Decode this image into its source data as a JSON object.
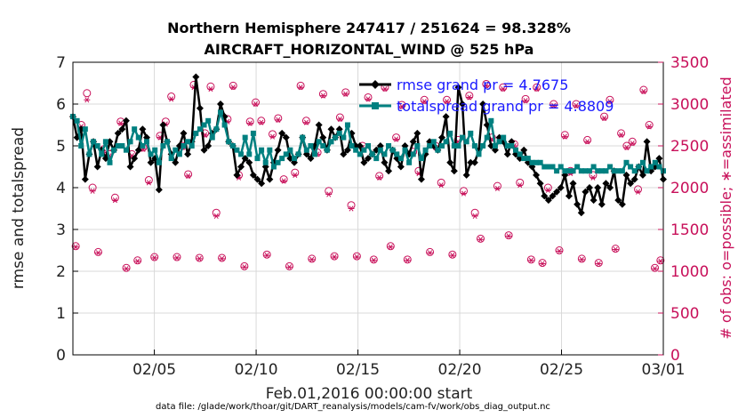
{
  "chart_data": {
    "type": "line",
    "title": [
      "Northern Hemisphere 247417 / 251624 = 98.328%",
      "AIRCRAFT_HORIZONTAL_WIND @ 525 hPa"
    ],
    "xlabel": "Feb.01,2016 00:00:00 start",
    "ylabel_left": "rmse and totalspread",
    "ylabel_right": "# of obs: o=possible; ∗=assimilated",
    "footer": "data file: /glade/work/thoar/git/DART_reanalysis/models/cam-fv/work/obs_diag_output.nc",
    "xlim": [
      1,
      30
    ],
    "ylim_left": [
      0,
      7
    ],
    "ylim_right": [
      0,
      3500
    ],
    "x_ticks": [
      {
        "value": 5,
        "label": "02/05"
      },
      {
        "value": 10,
        "label": "02/10"
      },
      {
        "value": 15,
        "label": "02/15"
      },
      {
        "value": 20,
        "label": "02/20"
      },
      {
        "value": 25,
        "label": "02/25"
      },
      {
        "value": 30,
        "label": "03/01"
      }
    ],
    "y_ticks_left": [
      "0",
      "1",
      "2",
      "3",
      "4",
      "5",
      "6",
      "7"
    ],
    "y_ticks_right": [
      "0",
      "500",
      "1000",
      "1500",
      "2000",
      "2500",
      "3000",
      "3500"
    ],
    "grid": true,
    "legend_position": "top-right",
    "series": [
      {
        "name": "rmse",
        "legend": "rmse grand pr = 4.7675",
        "color": "#000000",
        "marker": "diamond",
        "axis": "left",
        "values": [
          5.7,
          5.2,
          5.4,
          4.2,
          4.8,
          5.1,
          4.5,
          4.9,
          4.7,
          5.1,
          4.9,
          5.3,
          5.4,
          5.6,
          4.5,
          4.7,
          4.9,
          5.4,
          5.2,
          4.6,
          4.7,
          3.95,
          5.5,
          5.1,
          4.8,
          4.6,
          5.0,
          5.3,
          4.8,
          5.1,
          6.65,
          5.9,
          4.9,
          5.0,
          5.3,
          5.4,
          6.0,
          5.7,
          5.1,
          5.0,
          4.3,
          4.5,
          4.7,
          4.6,
          4.3,
          4.2,
          4.1,
          4.5,
          4.2,
          4.6,
          4.9,
          5.3,
          5.2,
          4.7,
          4.6,
          4.8,
          5.2,
          4.8,
          4.7,
          5.0,
          5.5,
          5.2,
          4.9,
          5.4,
          5.2,
          5.4,
          4.8,
          4.9,
          5.3,
          5.0,
          5.0,
          4.6,
          4.7,
          4.8,
          4.9,
          5.0,
          4.6,
          4.4,
          4.9,
          4.7,
          4.5,
          5.0,
          4.8,
          5.1,
          5.3,
          4.2,
          4.8,
          5.1,
          5.0,
          4.9,
          5.2,
          5.7,
          4.6,
          4.4,
          6.4,
          6.0,
          4.3,
          4.6,
          4.6,
          4.9,
          6.0,
          5.5,
          5.0,
          4.9,
          5.2,
          5.1,
          4.8,
          5.1,
          4.8,
          4.7,
          4.9,
          4.6,
          4.5,
          4.3,
          4.1,
          3.8,
          3.7,
          3.8,
          3.9,
          4.0,
          4.3,
          3.8,
          4.1,
          3.6,
          3.4,
          3.9,
          4.0,
          3.7,
          4.0,
          3.6,
          4.1,
          4.0,
          4.4,
          3.7,
          3.6,
          4.3,
          4.1,
          4.2,
          4.5,
          4.3,
          5.1,
          4.4,
          4.5,
          4.7,
          4.2
        ]
      },
      {
        "name": "totalspread",
        "legend": "totalspread grand pr = 4.8809",
        "color": "#008080",
        "marker": "square",
        "axis": "left",
        "values": [
          5.7,
          5.6,
          5.0,
          5.4,
          4.8,
          5.1,
          5.0,
          4.8,
          5.1,
          4.6,
          4.9,
          5.0,
          5.0,
          4.9,
          5.1,
          5.4,
          5.2,
          5.0,
          5.1,
          4.8,
          4.9,
          4.6,
          5.0,
          5.1,
          4.7,
          4.9,
          4.8,
          5.0,
          5.1,
          5.0,
          5.3,
          5.4,
          5.5,
          5.6,
          5.2,
          5.4,
          5.8,
          5.5,
          5.1,
          5.0,
          4.9,
          4.8,
          5.2,
          4.8,
          5.3,
          4.7,
          4.9,
          4.6,
          4.9,
          4.5,
          4.6,
          4.7,
          4.8,
          4.9,
          4.7,
          4.8,
          5.2,
          4.9,
          5.0,
          4.8,
          5.1,
          5.0,
          4.9,
          5.1,
          5.2,
          5.3,
          5.2,
          5.5,
          5.0,
          4.9,
          4.8,
          4.9,
          5.0,
          4.8,
          4.7,
          4.9,
          4.8,
          5.0,
          4.9,
          4.8,
          4.7,
          4.9,
          4.6,
          4.8,
          5.0,
          4.7,
          4.9,
          5.0,
          5.1,
          4.9,
          5.0,
          5.1,
          5.3,
          5.0,
          5.0,
          5.2,
          5.1,
          5.3,
          5.0,
          4.8,
          5.0,
          5.2,
          5.6,
          5.0,
          5.1,
          5.2,
          5.0,
          5.0,
          4.9,
          4.8,
          4.7,
          4.7,
          4.6,
          4.6,
          4.6,
          4.5,
          4.5,
          4.5,
          4.4,
          4.5,
          4.4,
          4.4,
          4.4,
          4.5,
          4.4,
          4.4,
          4.4,
          4.5,
          4.4,
          4.4,
          4.4,
          4.5,
          4.4,
          4.4,
          4.4,
          4.6,
          4.5,
          4.4,
          4.5,
          4.6,
          4.4,
          4.5,
          4.6,
          4.5,
          4.4
        ]
      },
      {
        "name": "obs_possible",
        "color": "#c8105a",
        "marker": "circle-open",
        "axis": "right",
        "values": [
          1300,
          2750,
          3130,
          2000,
          1230,
          2460,
          2400,
          1880,
          2790,
          1040,
          2400,
          1130,
          2480,
          2090,
          1170,
          2620,
          2790,
          3090,
          1170,
          2500,
          2160,
          3230,
          1160,
          2650,
          3210,
          1700,
          1160,
          2820,
          3220,
          2150,
          1060,
          2790,
          3020,
          2800,
          1200,
          2640,
          2830,
          2100,
          1060,
          2180,
          3220,
          2800,
          1150,
          2420,
          3120,
          1960,
          1180,
          2840,
          3140,
          1790,
          1180,
          2500,
          3080,
          1140,
          2140,
          3200,
          1300,
          2600,
          2990,
          1140,
          2430,
          2200,
          3050,
          1230,
          2500,
          2060,
          3050,
          1200,
          2570,
          1960,
          3100,
          1700,
          1390,
          3240,
          2600,
          2020,
          3200,
          1430,
          2520,
          2060,
          3060,
          1140,
          3200,
          1100,
          2000,
          3000,
          1250,
          2630,
          2200,
          3000,
          1150,
          2570,
          2150,
          1100,
          2850,
          3050,
          1270,
          2650,
          2500,
          2550,
          1980,
          3170,
          2750,
          1040,
          1130
        ]
      },
      {
        "name": "obs_assimilated",
        "color": "#c8105a",
        "marker": "asterisk",
        "axis": "right",
        "values": [
          1290,
          2730,
          3050,
          1960,
          1220,
          2420,
          2380,
          1850,
          2770,
          1030,
          2380,
          1120,
          2460,
          2060,
          1160,
          2600,
          2760,
          3060,
          1160,
          2480,
          2140,
          3200,
          1150,
          2630,
          3180,
          1660,
          1150,
          2790,
          3200,
          2120,
          1050,
          2770,
          3000,
          2780,
          1190,
          2610,
          2810,
          2080,
          1050,
          2150,
          3200,
          2780,
          1140,
          2400,
          3100,
          1920,
          1170,
          2820,
          3120,
          1750,
          1170,
          2480,
          3060,
          1130,
          2120,
          3180,
          1290,
          2580,
          2970,
          1130,
          2410,
          2170,
          3030,
          1220,
          2480,
          2030,
          3030,
          1190,
          2550,
          1930,
          3080,
          1660,
          1380,
          3220,
          2580,
          1990,
          3180,
          1420,
          2500,
          2030,
          3040,
          1130,
          3180,
          1090,
          1970,
          2980,
          1240,
          2610,
          2170,
          2980,
          1140,
          2550,
          2120,
          1090,
          2830,
          3030,
          1260,
          2630,
          2480,
          2530,
          1950,
          3150,
          2730,
          1030,
          1120
        ]
      }
    ]
  }
}
